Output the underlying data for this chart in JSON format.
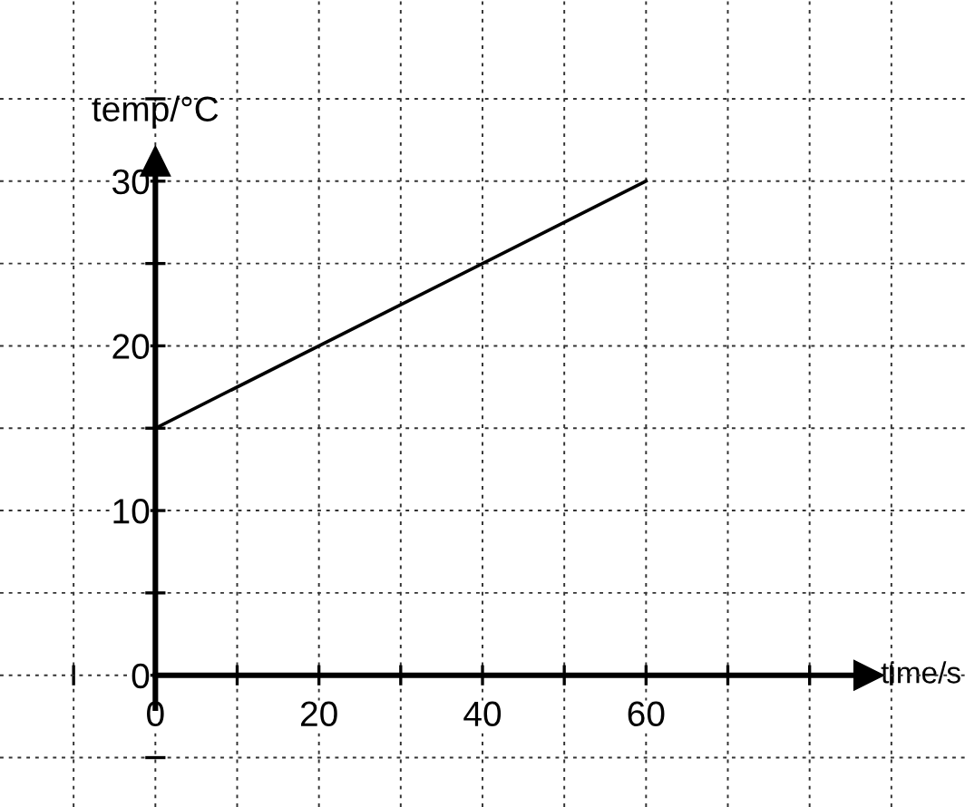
{
  "chart_data": {
    "type": "line",
    "xlabel": "time/s",
    "ylabel": "temp/°C",
    "series": [
      {
        "x": [
          0,
          60
        ],
        "values": [
          15,
          30
        ],
        "color": "#000000"
      }
    ],
    "xlim": [
      -19,
      99
    ],
    "ylim": [
      -8,
      41
    ],
    "xticks": [
      {
        "value": -10,
        "label": null
      },
      0,
      {
        "value": 10,
        "label": null
      },
      20,
      {
        "value": 30,
        "label": null
      },
      40,
      {
        "value": 50,
        "label": null
      },
      60,
      {
        "value": 70,
        "label": null
      },
      {
        "value": 80,
        "label": null
      },
      {
        "value": 90,
        "label": null
      }
    ],
    "yticks": [
      {
        "value": -5,
        "label": null
      },
      0,
      {
        "value": 5,
        "label": null
      },
      10,
      {
        "value": 15,
        "label": null
      },
      20,
      {
        "value": 25,
        "label": null
      },
      30,
      {
        "value": 35,
        "label": null
      }
    ],
    "grid": true,
    "marker": "none",
    "line_style": "solid"
  }
}
